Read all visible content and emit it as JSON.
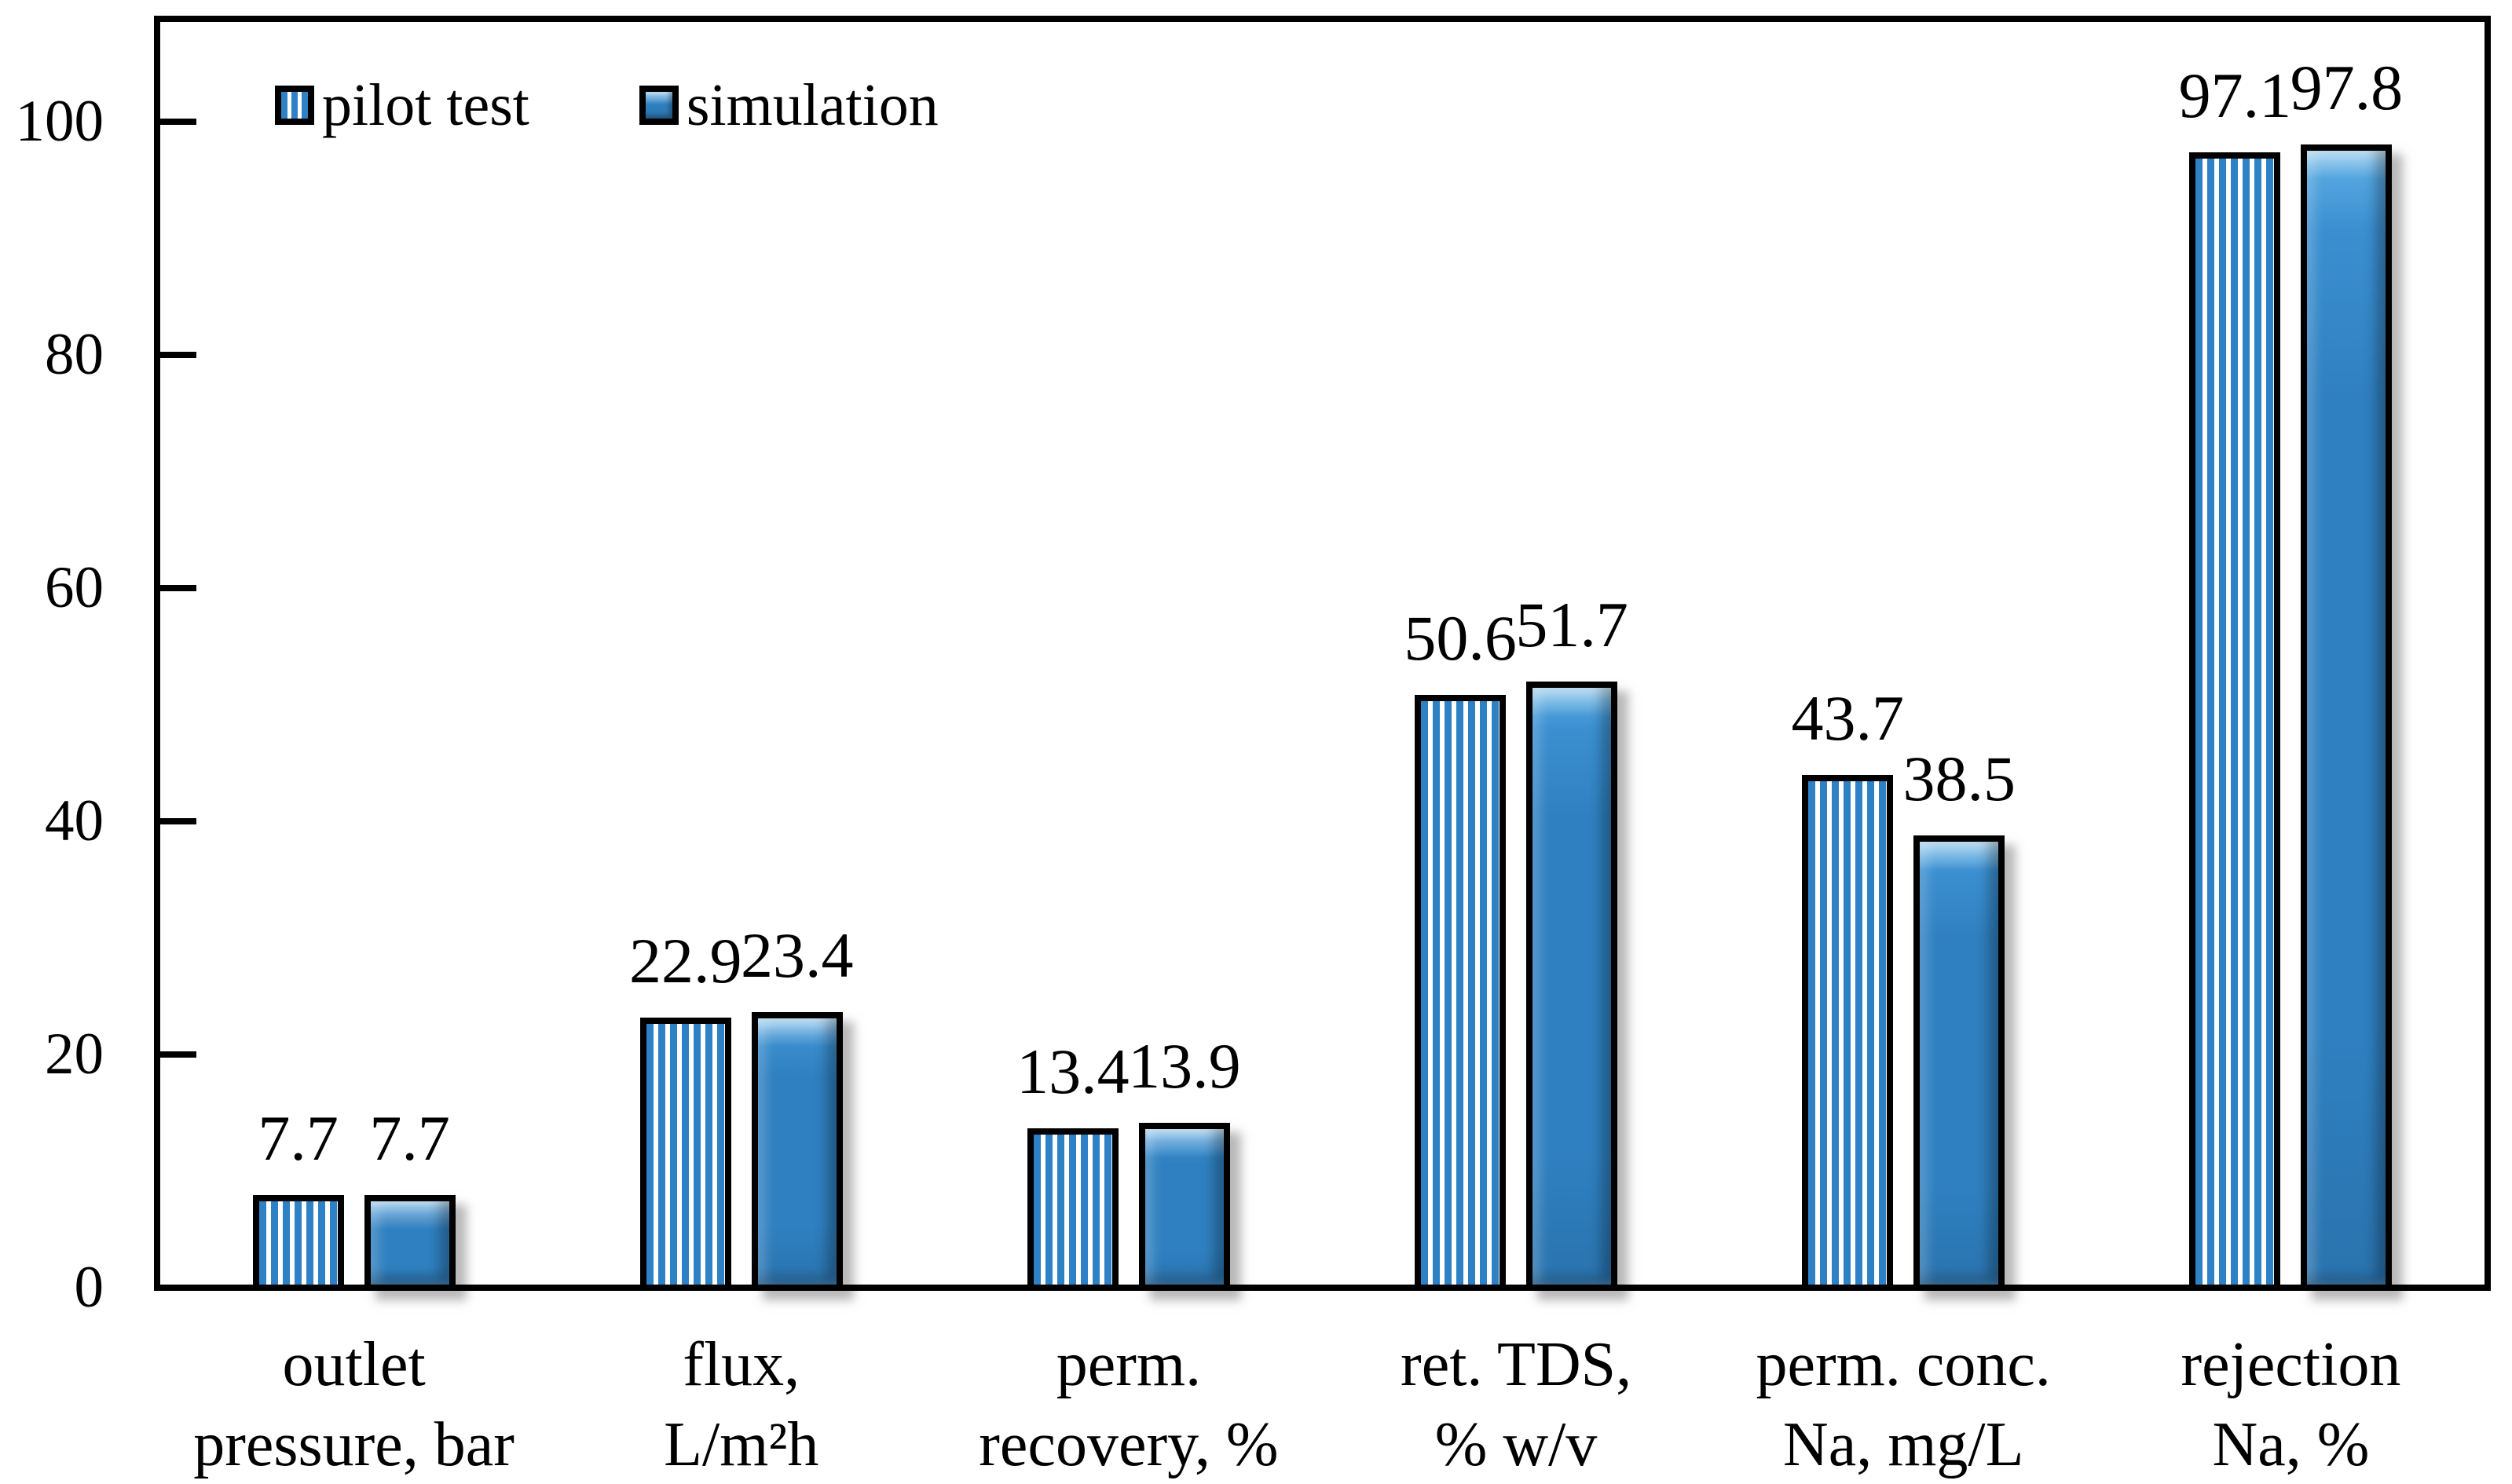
{
  "chart_data": {
    "type": "bar",
    "title": "",
    "xlabel": "",
    "ylabel": "",
    "ylim": [
      0,
      100
    ],
    "yticks": [
      0,
      20,
      40,
      60,
      80,
      100
    ],
    "grid": false,
    "legend_position": "top-left-inside",
    "categories": [
      {
        "line1": "outlet",
        "line2": "pressure, bar"
      },
      {
        "line1": "flux,",
        "line2": "L/m²h"
      },
      {
        "line1": "perm.",
        "line2": "recovery, %"
      },
      {
        "line1": "ret. TDS,",
        "line2": "% w/v"
      },
      {
        "line1": "perm. conc.",
        "line2": "Na, mg/L"
      },
      {
        "line1": "rejection",
        "line2": "Na, %"
      }
    ],
    "series": [
      {
        "name": "pilot test",
        "style": "striped",
        "values": [
          7.7,
          22.9,
          13.4,
          50.6,
          43.7,
          97.1
        ],
        "labels": [
          "7.7",
          "22.9",
          "13.4",
          "50.6",
          "43.7",
          "97.1"
        ]
      },
      {
        "name": "simulation",
        "style": "solid",
        "values": [
          7.7,
          23.4,
          13.9,
          51.7,
          38.5,
          97.8
        ],
        "labels": [
          "7.7",
          "23.4",
          "13.9",
          "51.7",
          "38.5",
          "97.8"
        ]
      }
    ]
  },
  "legend": {
    "pilot_label": "pilot test",
    "simulation_label": "simulation"
  },
  "colors": {
    "bar_blue": "#2e81c4",
    "bar_solid_main": "#2f80c0",
    "axis": "#000000",
    "background": "#ffffff"
  }
}
